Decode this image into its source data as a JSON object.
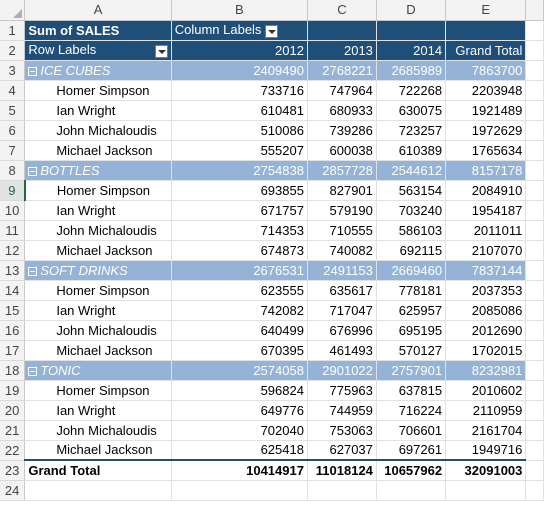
{
  "columns": [
    "A",
    "B",
    "C",
    "D",
    "E"
  ],
  "header": {
    "sum_label": "Sum of SALES",
    "column_labels": "Column Labels",
    "row_labels": "Row Labels",
    "years": [
      "2012",
      "2013",
      "2014"
    ],
    "grand_total_label": "Grand Total"
  },
  "groups": [
    {
      "name": "ICE CUBES",
      "totals": [
        "2409490",
        "2768221",
        "2685989",
        "7863700"
      ],
      "rows": [
        {
          "name": "Homer Simpson",
          "values": [
            "733716",
            "747964",
            "722268",
            "2203948"
          ]
        },
        {
          "name": "Ian Wright",
          "values": [
            "610481",
            "680933",
            "630075",
            "1921489"
          ]
        },
        {
          "name": "John Michaloudis",
          "values": [
            "510086",
            "739286",
            "723257",
            "1972629"
          ]
        },
        {
          "name": "Michael Jackson",
          "values": [
            "555207",
            "600038",
            "610389",
            "1765634"
          ]
        }
      ]
    },
    {
      "name": "BOTTLES",
      "totals": [
        "2754838",
        "2857728",
        "2544612",
        "8157178"
      ],
      "rows": [
        {
          "name": "Homer Simpson",
          "values": [
            "693855",
            "827901",
            "563154",
            "2084910"
          ]
        },
        {
          "name": "Ian Wright",
          "values": [
            "671757",
            "579190",
            "703240",
            "1954187"
          ]
        },
        {
          "name": "John Michaloudis",
          "values": [
            "714353",
            "710555",
            "586103",
            "2011011"
          ]
        },
        {
          "name": "Michael Jackson",
          "values": [
            "674873",
            "740082",
            "692115",
            "2107070"
          ]
        }
      ]
    },
    {
      "name": "SOFT DRINKS",
      "totals": [
        "2676531",
        "2491153",
        "2669460",
        "7837144"
      ],
      "rows": [
        {
          "name": "Homer Simpson",
          "values": [
            "623555",
            "635617",
            "778181",
            "2037353"
          ]
        },
        {
          "name": "Ian Wright",
          "values": [
            "742082",
            "717047",
            "625957",
            "2085086"
          ]
        },
        {
          "name": "John Michaloudis",
          "values": [
            "640499",
            "676996",
            "695195",
            "2012690"
          ]
        },
        {
          "name": "Michael Jackson",
          "values": [
            "670395",
            "461493",
            "570127",
            "1702015"
          ]
        }
      ]
    },
    {
      "name": "TONIC",
      "totals": [
        "2574058",
        "2901022",
        "2757901",
        "8232981"
      ],
      "rows": [
        {
          "name": "Homer Simpson",
          "values": [
            "596824",
            "775963",
            "637815",
            "2010602"
          ]
        },
        {
          "name": "Ian Wright",
          "values": [
            "649776",
            "744959",
            "716224",
            "2110959"
          ]
        },
        {
          "name": "John Michaloudis",
          "values": [
            "702040",
            "753063",
            "706601",
            "2161704"
          ]
        },
        {
          "name": "Michael Jackson",
          "values": [
            "625418",
            "627037",
            "697261",
            "1949716"
          ]
        }
      ]
    }
  ],
  "grand_total": {
    "label": "Grand Total",
    "values": [
      "10414917",
      "11018124",
      "10657962",
      "32091003"
    ]
  },
  "row_numbers": [
    "1",
    "2",
    "3",
    "4",
    "5",
    "6",
    "7",
    "8",
    "9",
    "10",
    "11",
    "12",
    "13",
    "14",
    "15",
    "16",
    "17",
    "18",
    "19",
    "20",
    "21",
    "22",
    "23",
    "24"
  ],
  "colors": {
    "header": "#1f4e79",
    "group": "#95b3d7",
    "selection": "#1d6b3a"
  }
}
